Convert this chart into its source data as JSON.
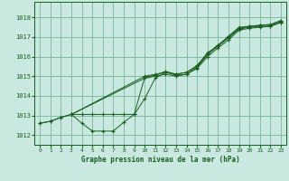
{
  "title": "Graphe pression niveau de la mer (hPa)",
  "background_color": "#c8e8e0",
  "grid_color": "#6aab8e",
  "line_color": "#1a5e20",
  "xlim": [
    -0.5,
    23.5
  ],
  "ylim": [
    1011.5,
    1018.8
  ],
  "yticks": [
    1012,
    1013,
    1014,
    1015,
    1016,
    1017,
    1018
  ],
  "xticks": [
    0,
    1,
    2,
    3,
    4,
    5,
    6,
    7,
    8,
    9,
    10,
    11,
    12,
    13,
    14,
    15,
    16,
    17,
    18,
    19,
    20,
    21,
    22,
    23
  ],
  "series": [
    {
      "x": [
        0,
        1,
        2,
        3,
        4,
        5,
        6,
        7,
        8,
        9,
        10,
        11,
        12,
        13,
        14,
        15,
        16,
        17,
        18,
        19,
        20,
        21,
        22,
        23
      ],
      "y": [
        1012.6,
        1012.7,
        1012.9,
        1013.05,
        1013.05,
        1013.05,
        1013.05,
        1013.05,
        1013.05,
        1013.05,
        1014.95,
        1015.05,
        1015.25,
        1015.1,
        1015.2,
        1015.55,
        1016.2,
        1016.55,
        1017.05,
        1017.5,
        1017.55,
        1017.6,
        1017.65,
        1017.85
      ]
    },
    {
      "x": [
        3,
        10,
        11,
        12,
        13,
        14,
        15,
        16,
        17,
        18,
        19,
        20,
        21,
        22,
        23
      ],
      "y": [
        1013.05,
        1014.9,
        1015.0,
        1015.1,
        1015.0,
        1015.1,
        1015.4,
        1016.0,
        1016.45,
        1016.85,
        1017.35,
        1017.45,
        1017.5,
        1017.55,
        1017.75
      ]
    },
    {
      "x": [
        3,
        10,
        11,
        12,
        13,
        14,
        15,
        16,
        17,
        18,
        19,
        20,
        21,
        22,
        23
      ],
      "y": [
        1013.05,
        1015.0,
        1015.1,
        1015.2,
        1015.1,
        1015.2,
        1015.5,
        1016.15,
        1016.6,
        1017.0,
        1017.45,
        1017.55,
        1017.6,
        1017.6,
        1017.8
      ]
    },
    {
      "x": [
        0,
        1,
        2,
        3,
        4,
        5,
        6,
        7,
        8,
        9,
        10,
        11,
        12,
        13,
        14,
        15,
        16,
        17,
        18,
        19,
        20,
        21,
        22,
        23
      ],
      "y": [
        1012.6,
        1012.7,
        1012.9,
        1013.05,
        1012.6,
        1012.2,
        1012.2,
        1012.2,
        1012.65,
        1013.05,
        1013.85,
        1014.9,
        1015.2,
        1015.05,
        1015.1,
        1015.45,
        1016.1,
        1016.55,
        1016.95,
        1017.4,
        1017.5,
        1017.55,
        1017.55,
        1017.75
      ]
    }
  ]
}
